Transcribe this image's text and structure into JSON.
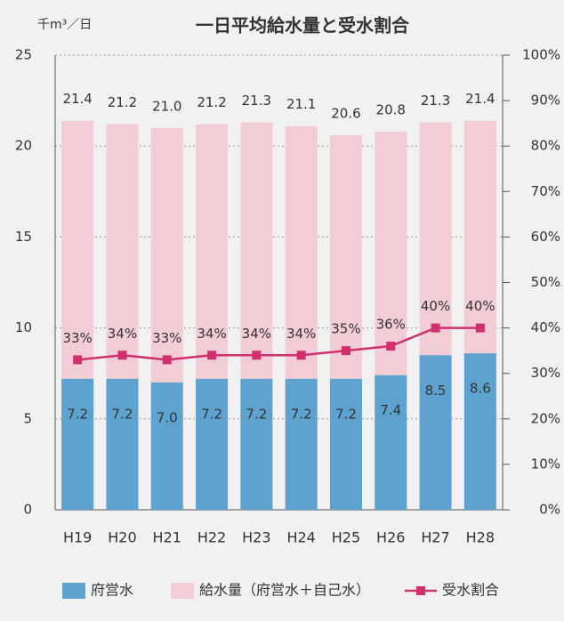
{
  "chart_data": {
    "type": "bar",
    "title": "一日平均給水量と受水割合",
    "y_label": "千m³／日",
    "categories": [
      "H19",
      "H20",
      "H21",
      "H22",
      "H23",
      "H24",
      "H25",
      "H26",
      "H27",
      "H28"
    ],
    "series": [
      {
        "name": "府営水",
        "color": "#5ea3cf",
        "values": [
          7.2,
          7.2,
          7.0,
          7.2,
          7.2,
          7.2,
          7.2,
          7.4,
          8.5,
          8.6
        ],
        "value_labels": [
          "7.2",
          "7.2",
          "7.0",
          "7.2",
          "7.2",
          "7.2",
          "7.2",
          "7.4",
          "8.5",
          "8.6"
        ]
      },
      {
        "name": "給水量（府営水＋自己水）",
        "color": "#f2cdd6",
        "values": [
          21.4,
          21.2,
          21.0,
          21.2,
          21.3,
          21.1,
          20.6,
          20.8,
          21.3,
          21.4
        ],
        "value_labels": [
          "21.4",
          "21.2",
          "21.0",
          "21.2",
          "21.3",
          "21.1",
          "20.6",
          "20.8",
          "21.3",
          "21.4"
        ]
      },
      {
        "name": "受水割合",
        "type": "line",
        "axis": "y2",
        "color": "#d22f6e",
        "values": [
          33,
          34,
          33,
          34,
          34,
          34,
          35,
          36,
          40,
          40
        ],
        "value_labels": [
          "33%",
          "34%",
          "33%",
          "34%",
          "34%",
          "34%",
          "35%",
          "36%",
          "40%",
          "40%"
        ]
      }
    ],
    "ylim": [
      0,
      25
    ],
    "yticks": [
      0,
      5,
      10,
      15,
      20,
      25
    ],
    "y2lim": [
      0,
      100
    ],
    "y2ticks": [
      {
        "value": 0,
        "label": "0%"
      },
      {
        "value": 10,
        "label": "10%"
      },
      {
        "value": 20,
        "label": "20%"
      },
      {
        "value": 30,
        "label": "30%"
      },
      {
        "value": 40,
        "label": "40%"
      },
      {
        "value": 50,
        "label": "50%"
      },
      {
        "value": 60,
        "label": "60%"
      },
      {
        "value": 70,
        "label": "70%"
      },
      {
        "value": 80,
        "label": "80%"
      },
      {
        "value": 90,
        "label": "90%"
      },
      {
        "value": 100,
        "label": "100%"
      }
    ],
    "grid": true,
    "legend": "bottom"
  }
}
